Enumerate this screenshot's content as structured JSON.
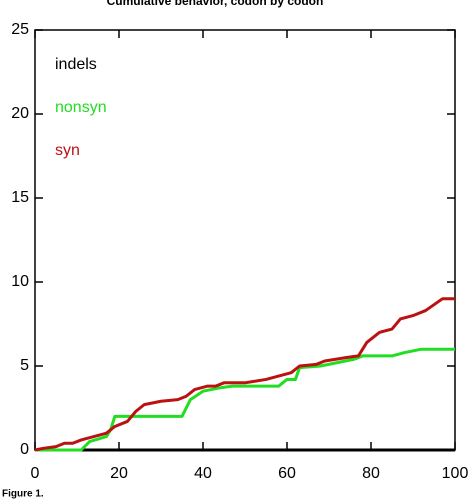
{
  "chart_data": {
    "type": "line",
    "title": "Cumulative behavior, codon by codon",
    "caption": "Figure 1.",
    "xlim": [
      0,
      100
    ],
    "xticks": [
      0,
      20,
      40,
      60,
      80,
      100
    ],
    "ylim": [
      0,
      25
    ],
    "yticks": [
      0,
      5,
      10,
      15,
      20,
      25
    ],
    "series": [
      {
        "name": "indels",
        "color": "#000000",
        "x": [
          0,
          100
        ],
        "values": [
          0,
          0
        ]
      },
      {
        "name": "nonsyn",
        "color": "#22dd22",
        "x": [
          0,
          11,
          13,
          17,
          18,
          19,
          35,
          37,
          40,
          44,
          47,
          58,
          60,
          62,
          63,
          68,
          72,
          76,
          78,
          85,
          88,
          92,
          100
        ],
        "values": [
          0,
          0,
          0.5,
          0.8,
          1.2,
          2,
          2,
          3,
          3.5,
          3.7,
          3.8,
          3.8,
          4.2,
          4.2,
          4.9,
          5,
          5.2,
          5.4,
          5.6,
          5.6,
          5.8,
          6,
          6
        ]
      },
      {
        "name": "syn",
        "color": "#bb1111",
        "x": [
          0,
          2,
          5,
          7,
          9,
          11,
          14,
          17,
          19,
          22,
          24,
          26,
          30,
          34,
          36,
          38,
          41,
          43,
          45,
          50,
          55,
          58,
          61,
          63,
          67,
          69,
          74,
          77,
          79,
          82,
          85,
          87,
          90,
          93,
          97,
          100
        ],
        "values": [
          0,
          0.1,
          0.2,
          0.4,
          0.4,
          0.6,
          0.8,
          1.0,
          1.4,
          1.7,
          2.3,
          2.7,
          2.9,
          3.0,
          3.2,
          3.6,
          3.8,
          3.8,
          4,
          4,
          4.2,
          4.4,
          4.6,
          5,
          5.1,
          5.3,
          5.5,
          5.6,
          6.4,
          7,
          7.2,
          7.8,
          8,
          8.3,
          9,
          9
        ]
      }
    ]
  }
}
